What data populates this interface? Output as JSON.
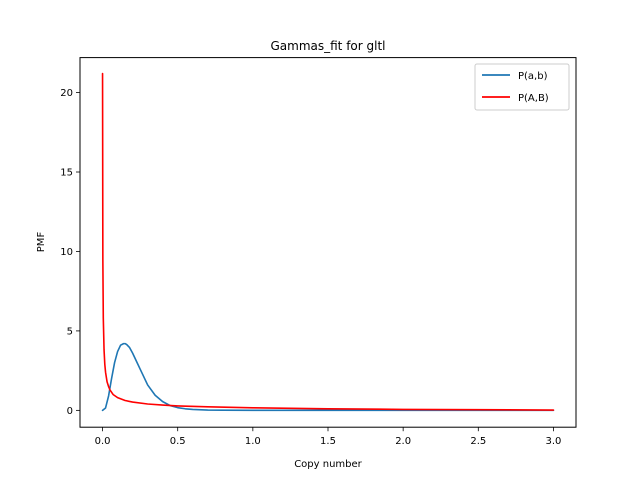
{
  "chart_data": {
    "type": "line",
    "title": "Gammas_fit for gltl",
    "xlabel": "Copy number",
    "ylabel": "PMF",
    "xlim": [
      -0.15,
      3.15
    ],
    "ylim": [
      -1.06,
      22.2
    ],
    "xticks": [
      0.0,
      0.5,
      1.0,
      1.5,
      2.0,
      2.5,
      3.0
    ],
    "xtick_labels": [
      "0.0",
      "0.5",
      "1.0",
      "1.5",
      "2.0",
      "2.5",
      "3.0"
    ],
    "yticks": [
      0,
      5,
      10,
      15,
      20
    ],
    "ytick_labels": [
      "0",
      "5",
      "10",
      "15",
      "20"
    ],
    "grid": false,
    "legend_position": "top-right",
    "series": [
      {
        "name": "P(a,b)",
        "color": "#1f77b4",
        "x": [
          0.0,
          0.02,
          0.04,
          0.06,
          0.08,
          0.1,
          0.12,
          0.14,
          0.15,
          0.16,
          0.18,
          0.2,
          0.22,
          0.25,
          0.28,
          0.3,
          0.35,
          0.4,
          0.45,
          0.5,
          0.55,
          0.6,
          0.7,
          0.8,
          1.0,
          1.5,
          2.0,
          2.5,
          3.0
        ],
        "y": [
          0.0,
          0.15,
          0.9,
          2.0,
          3.0,
          3.7,
          4.1,
          4.2,
          4.2,
          4.15,
          3.95,
          3.6,
          3.2,
          2.6,
          2.0,
          1.6,
          0.95,
          0.55,
          0.3,
          0.17,
          0.1,
          0.06,
          0.02,
          0.01,
          0.0,
          0.0,
          0.0,
          0.0,
          0.0
        ]
      },
      {
        "name": "P(A,B)",
        "color": "#ff0000",
        "x": [
          0.0,
          0.002,
          0.005,
          0.01,
          0.015,
          0.02,
          0.03,
          0.04,
          0.05,
          0.07,
          0.1,
          0.15,
          0.2,
          0.3,
          0.4,
          0.5,
          0.7,
          1.0,
          1.5,
          2.0,
          2.5,
          3.0
        ],
        "y": [
          21.2,
          9.5,
          5.8,
          3.8,
          2.9,
          2.4,
          1.8,
          1.5,
          1.28,
          1.0,
          0.8,
          0.62,
          0.52,
          0.4,
          0.33,
          0.28,
          0.22,
          0.16,
          0.1,
          0.06,
          0.04,
          0.02
        ]
      }
    ]
  }
}
